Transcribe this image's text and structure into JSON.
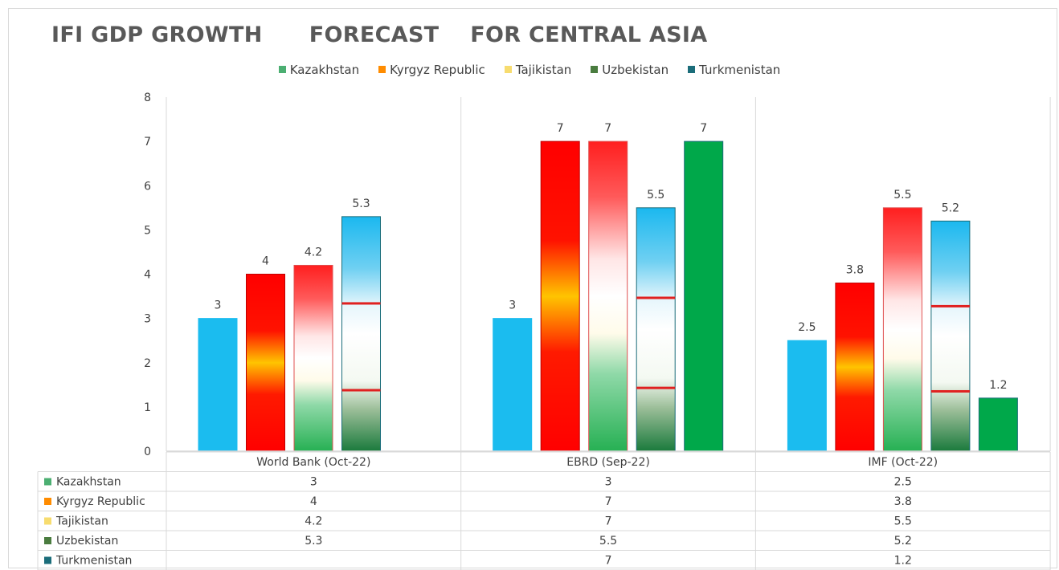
{
  "chart_data": {
    "type": "bar",
    "title": "IFI GDP GROWTH      FORECAST    FOR CENTRAL ASIA",
    "categories": [
      "World Bank (Oct-22)",
      "EBRD (Sep-22)",
      "IMF (Oct-22)"
    ],
    "series": [
      {
        "name": "Kazakhstan",
        "values": [
          3,
          3,
          2.5
        ]
      },
      {
        "name": "Kyrgyz Republic",
        "values": [
          4,
          7,
          3.8
        ]
      },
      {
        "name": "Tajikistan",
        "values": [
          4.2,
          7,
          5.5
        ]
      },
      {
        "name": "Uzbekistan",
        "values": [
          5.3,
          5.5,
          5.2
        ]
      },
      {
        "name": "Turkmenistan",
        "values": [
          null,
          7,
          1.2
        ]
      }
    ],
    "ylim": [
      0,
      8
    ],
    "yticks": [
      "0",
      "1",
      "2",
      "3",
      "4",
      "5",
      "6",
      "7",
      "8"
    ],
    "legend_position": "top",
    "grid": false,
    "data_table": true,
    "xlabel": "",
    "ylabel": ""
  },
  "legend_colors": {
    "Kazakhstan": "#4caf72",
    "Kyrgyz Republic": "#ff8c00",
    "Tajikistan": "#f7dc6f",
    "Uzbekistan": "#4a7c3f",
    "Turkmenistan": "#1b6d7a"
  }
}
